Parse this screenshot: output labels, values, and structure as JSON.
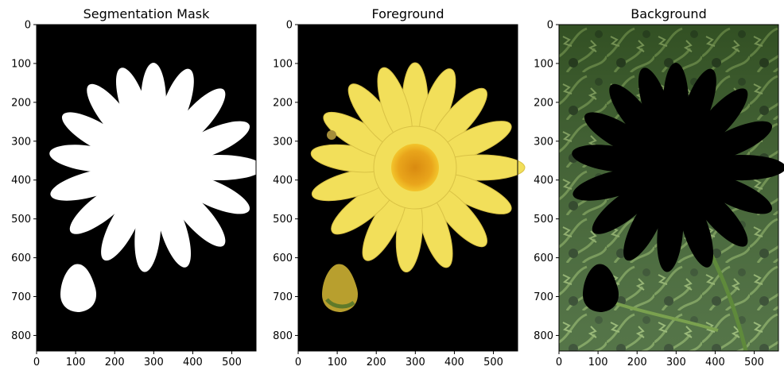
{
  "chart_data": [
    {
      "type": "image",
      "title": "Segmentation Mask",
      "xticks": [
        "0",
        "100",
        "200",
        "300",
        "400",
        "500"
      ],
      "yticks": [
        "0",
        "100",
        "200",
        "300",
        "400",
        "500",
        "600",
        "700",
        "800"
      ],
      "xlim": [
        0,
        562
      ],
      "ylim": [
        840,
        0
      ],
      "grid": false,
      "image_content": "binary mask: white flower + bud on black"
    },
    {
      "type": "image",
      "title": "Foreground",
      "xticks": [
        "0",
        "100",
        "200",
        "300",
        "400",
        "500"
      ],
      "yticks": [
        "0",
        "100",
        "200",
        "300",
        "400",
        "500",
        "600",
        "700",
        "800"
      ],
      "xlim": [
        0,
        562
      ],
      "ylim": [
        840,
        0
      ],
      "grid": false,
      "image_content": "yellow daisy and bud on black"
    },
    {
      "type": "image",
      "title": "Background",
      "xticks": [
        "0",
        "100",
        "200",
        "300",
        "400",
        "500"
      ],
      "yticks": [
        "0",
        "100",
        "200",
        "300",
        "400",
        "500",
        "600",
        "700",
        "800"
      ],
      "xlim": [
        0,
        562
      ],
      "ylim": [
        840,
        0
      ],
      "grid": false,
      "image_content": "green foliage with black flower cutout"
    }
  ],
  "colors": {
    "mask_bg": "#000000",
    "mask_fg": "#ffffff",
    "petal": "#f2df5a",
    "petal_edge": "#d8c23c",
    "center": "#e7a318",
    "bud": "#b49b2d",
    "foliage_dark": "#243b1d",
    "foliage_mid": "#4d7a33",
    "foliage_light": "#82a85a"
  }
}
